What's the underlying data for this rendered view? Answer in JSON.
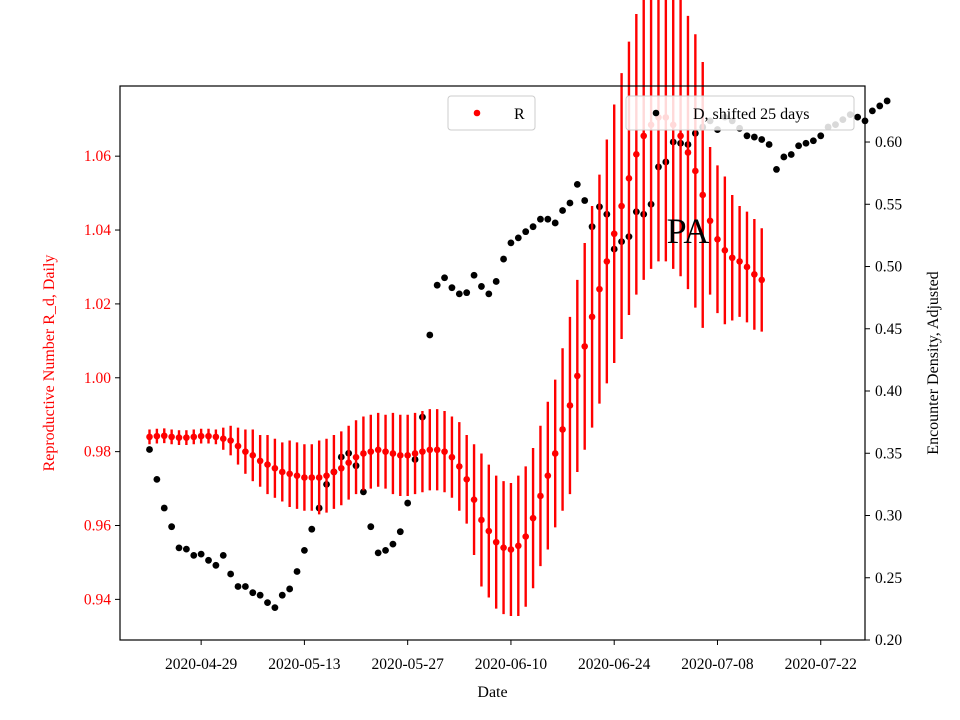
{
  "chart_data": {
    "type": "scatter",
    "xlabel": "Date",
    "ylabel_left": "Reproductive Number R_d, Daily",
    "ylabel_right": "Encounter Density, Adjusted",
    "annotation": "PA",
    "colors": {
      "R": "#ff0000",
      "D": "#000000"
    },
    "xlim": [
      "2020-04-18",
      "2020-07-28"
    ],
    "ylim_left": [
      0.929,
      1.079
    ],
    "ylim_right": [
      0.2,
      0.645
    ],
    "x_ticks": [
      "2020-04-29",
      "2020-05-13",
      "2020-05-27",
      "2020-06-10",
      "2020-06-24",
      "2020-07-08",
      "2020-07-22"
    ],
    "y_ticks_left": [
      0.94,
      0.96,
      0.98,
      1.0,
      1.02,
      1.04,
      1.06
    ],
    "y_ticks_left_labels": [
      "0.94",
      "0.96",
      "0.98",
      "1.00",
      "1.02",
      "1.04",
      "1.06"
    ],
    "y_ticks_right": [
      0.2,
      0.25,
      0.3,
      0.35,
      0.4,
      0.45,
      0.5,
      0.55,
      0.6
    ],
    "y_ticks_right_labels": [
      "0.20",
      "0.25",
      "0.30",
      "0.35",
      "0.40",
      "0.45",
      "0.50",
      "0.55",
      "0.60"
    ],
    "legend": [
      {
        "label": "R",
        "placement": "top-center"
      },
      {
        "label": "D, shifted 25 days",
        "placement": "top-right"
      }
    ],
    "series": [
      {
        "name": "R",
        "axis": "left",
        "start_date": "2020-04-22",
        "values": [
          0.984,
          0.9842,
          0.9843,
          0.984,
          0.9838,
          0.9838,
          0.984,
          0.9842,
          0.9842,
          0.984,
          0.9835,
          0.983,
          0.9815,
          0.98,
          0.979,
          0.9775,
          0.9765,
          0.9755,
          0.9745,
          0.974,
          0.9735,
          0.973,
          0.973,
          0.973,
          0.9735,
          0.9745,
          0.9755,
          0.977,
          0.9785,
          0.9795,
          0.98,
          0.9805,
          0.98,
          0.9795,
          0.979,
          0.979,
          0.9795,
          0.98,
          0.9805,
          0.9805,
          0.98,
          0.9785,
          0.976,
          0.9725,
          0.967,
          0.9615,
          0.9585,
          0.9555,
          0.954,
          0.9535,
          0.9545,
          0.957,
          0.962,
          0.968,
          0.9735,
          0.9795,
          0.986,
          0.9925,
          1.0005,
          1.0085,
          1.0165,
          1.024,
          1.0315,
          1.039,
          1.0465,
          1.054,
          1.0605,
          1.0655,
          1.0685,
          1.0705,
          1.0705,
          1.0685,
          1.0655,
          1.061,
          1.056,
          1.0495,
          1.0425,
          1.0375,
          1.0345,
          1.0325,
          1.0315,
          1.03,
          1.028,
          1.0265
        ],
        "error": [
          0.002,
          0.002,
          0.002,
          0.002,
          0.002,
          0.002,
          0.002,
          0.002,
          0.002,
          0.002,
          0.003,
          0.004,
          0.005,
          0.006,
          0.007,
          0.007,
          0.008,
          0.008,
          0.008,
          0.009,
          0.009,
          0.009,
          0.009,
          0.01,
          0.01,
          0.01,
          0.01,
          0.01,
          0.01,
          0.01,
          0.01,
          0.01,
          0.01,
          0.011,
          0.011,
          0.011,
          0.011,
          0.011,
          0.011,
          0.011,
          0.011,
          0.011,
          0.012,
          0.012,
          0.015,
          0.018,
          0.018,
          0.018,
          0.018,
          0.018,
          0.019,
          0.019,
          0.019,
          0.019,
          0.02,
          0.02,
          0.022,
          0.024,
          0.026,
          0.028,
          0.03,
          0.031,
          0.033,
          0.035,
          0.036,
          0.037,
          0.038,
          0.039,
          0.039,
          0.039,
          0.039,
          0.039,
          0.038,
          0.037,
          0.037,
          0.036,
          0.02,
          0.02,
          0.02,
          0.017,
          0.015,
          0.015,
          0.015,
          0.014
        ]
      },
      {
        "name": "D, shifted 25 days",
        "axis": "right",
        "start_date": "2020-04-22",
        "values": [
          0.353,
          0.329,
          0.306,
          0.291,
          0.274,
          0.273,
          0.268,
          0.269,
          0.264,
          0.26,
          0.268,
          0.253,
          0.243,
          0.243,
          0.238,
          0.236,
          0.23,
          0.226,
          0.236,
          0.241,
          0.255,
          0.272,
          0.289,
          0.306,
          0.325,
          0.335,
          0.347,
          0.35,
          0.34,
          0.319,
          0.291,
          0.27,
          0.272,
          0.277,
          0.287,
          0.31,
          0.345,
          0.379,
          0.445,
          0.485,
          0.491,
          0.483,
          0.478,
          0.479,
          0.493,
          0.484,
          0.478,
          0.488,
          0.506,
          0.519,
          0.523,
          0.528,
          0.532,
          0.538,
          0.538,
          0.535,
          0.545,
          0.551,
          0.566,
          0.553,
          0.532,
          0.548,
          0.542,
          0.514,
          0.52,
          0.524,
          0.544,
          0.542,
          0.55,
          0.58,
          0.584,
          0.6,
          0.599,
          0.598,
          0.607,
          0.612,
          0.617,
          0.61,
          0.62,
          0.617,
          0.611,
          0.605,
          0.604,
          0.602,
          0.598,
          0.578,
          0.588,
          0.59,
          0.597,
          0.599,
          0.601,
          0.605,
          0.612,
          0.614,
          0.618,
          0.622,
          0.62,
          0.617,
          0.625,
          0.629,
          0.633
        ]
      }
    ]
  }
}
